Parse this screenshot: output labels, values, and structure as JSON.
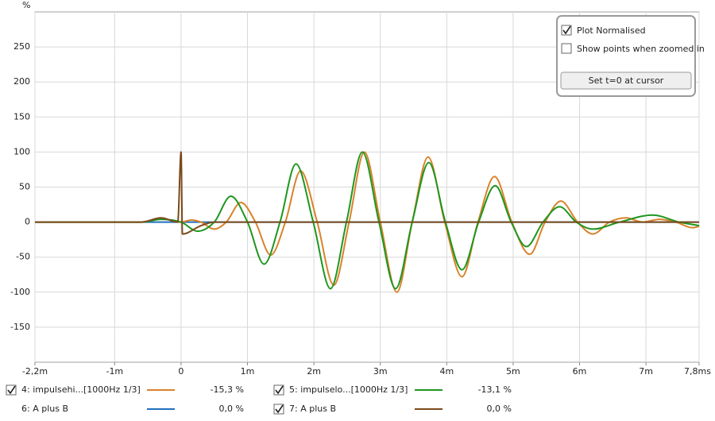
{
  "chart_data": {
    "type": "line",
    "ylabel": "%",
    "xlim": [
      -2.2,
      7.8
    ],
    "ylim": [
      -200,
      300
    ],
    "xticks": [
      {
        "value": -2.2,
        "label": "-2,2m"
      },
      {
        "value": -1,
        "label": "-1m"
      },
      0,
      {
        "value": 1,
        "label": "1m"
      },
      {
        "value": 2,
        "label": "2m"
      },
      {
        "value": 3,
        "label": "3m"
      },
      {
        "value": 4,
        "label": "4m"
      },
      {
        "value": 5,
        "label": "5m"
      },
      {
        "value": 6,
        "label": "6m"
      },
      {
        "value": 7,
        "label": "7m"
      },
      {
        "value": 7.8,
        "label": "7,8ms"
      }
    ],
    "yticks": [
      -150,
      -100,
      -50,
      0,
      50,
      100,
      150,
      200,
      250
    ],
    "grid": true,
    "series": [
      {
        "name": "4: impulsehi...[1000Hz 1/3]",
        "color": "#d9822b",
        "readout": "-15,3 %",
        "checked": true,
        "x": [
          -2.2,
          -0.6,
          -0.3,
          0,
          0.15,
          0.3,
          0.5,
          0.68,
          0.9,
          1.12,
          1.35,
          1.57,
          1.8,
          2.05,
          2.3,
          2.53,
          2.76,
          3.0,
          3.25,
          3.48,
          3.72,
          3.97,
          4.23,
          4.47,
          4.72,
          4.98,
          5.25,
          5.48,
          5.72,
          5.97,
          6.2,
          6.45,
          6.7,
          6.95,
          7.2,
          7.45,
          7.7,
          7.8
        ],
        "values": [
          0,
          0,
          5,
          0,
          3,
          0,
          -10,
          0,
          28,
          0,
          -47,
          0,
          73,
          0,
          -90,
          0,
          100,
          0,
          -100,
          0,
          93,
          0,
          -78,
          0,
          65,
          0,
          -46,
          0,
          30,
          0,
          -17,
          0,
          6,
          0,
          4,
          0,
          -8,
          -6
        ]
      },
      {
        "name": "5: impulselo...[1000Hz 1/3]",
        "color": "#1e961e",
        "readout": "-13,1 %",
        "checked": true,
        "x": [
          -2.2,
          -0.6,
          -0.3,
          0,
          0.25,
          0.5,
          0.75,
          1.0,
          1.25,
          1.49,
          1.73,
          1.99,
          2.25,
          2.49,
          2.73,
          2.98,
          3.23,
          3.48,
          3.73,
          3.98,
          4.23,
          4.48,
          4.73,
          4.97,
          5.2,
          5.45,
          5.7,
          5.95,
          6.2,
          6.6,
          7.1,
          7.5,
          7.8
        ],
        "values": [
          0,
          0,
          4,
          0,
          -13,
          0,
          37,
          0,
          -60,
          0,
          83,
          0,
          -95,
          0,
          100,
          0,
          -95,
          0,
          85,
          0,
          -68,
          0,
          52,
          0,
          -35,
          0,
          22,
          0,
          -10,
          0,
          10,
          0,
          -5
        ]
      },
      {
        "name": "6: A plus B",
        "color": "#1f6fbf",
        "readout": "0,0 %",
        "checked": false,
        "x": [
          -2.2,
          7.8
        ],
        "values": [
          0,
          0
        ]
      },
      {
        "name": "7: A plus B",
        "color": "#7a4a1a",
        "readout": "0,0 %",
        "checked": true,
        "x": [
          -2.2,
          -0.6,
          -0.3,
          -0.05,
          0,
          0.02,
          0.3,
          0.5,
          7.8
        ],
        "values": [
          0,
          0,
          6,
          0,
          100,
          -17,
          -5,
          0,
          0
        ]
      }
    ]
  },
  "controls": {
    "plot_normalised": {
      "label": "Plot Normalised",
      "checked": true
    },
    "show_points": {
      "label": "Show points when zoomed in",
      "checked": false
    },
    "button": "Set t=0 at cursor"
  }
}
